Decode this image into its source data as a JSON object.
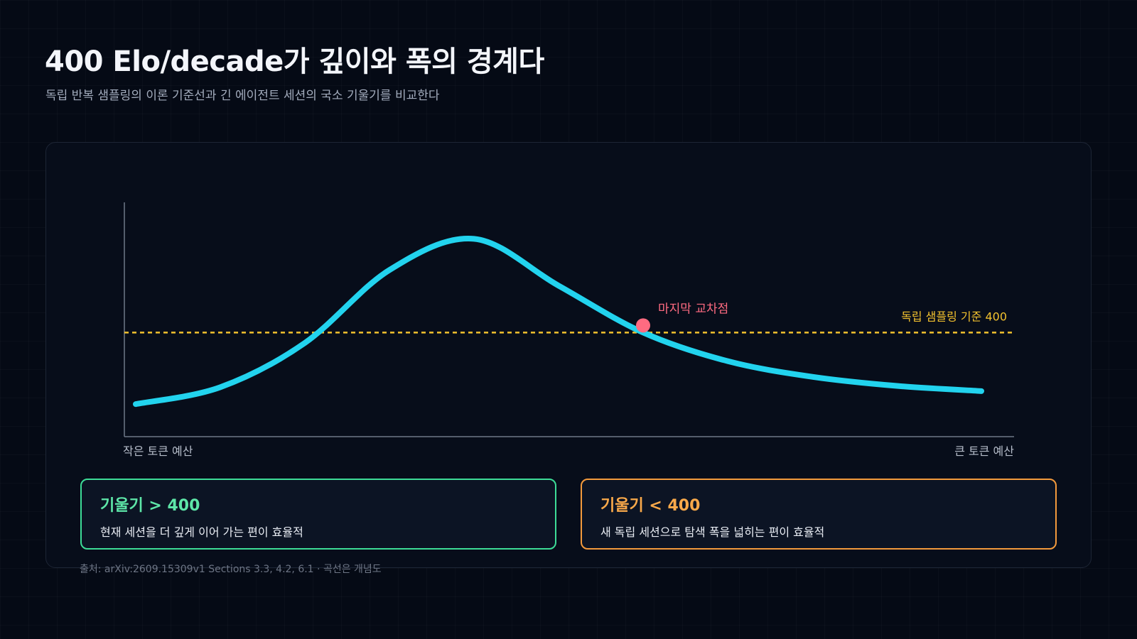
{
  "header": {
    "title": "400 Elo/decade가 깊이와 폭의 경계다",
    "subtitle": "독립 반복 샘플링의 이론 기준선과 긴 에이전트 세션의 국소 기울기를 비교한다"
  },
  "chart_data": {
    "type": "line",
    "xlabel_left": "작은 토큰 예산",
    "xlabel_right": "큰 토큰 예산",
    "baseline": {
      "value": 400,
      "label": "독립 샘플링 기준 400",
      "color": "#f2c12e"
    },
    "crossing": {
      "label": "마지막 교차점",
      "color": "#ff6b81"
    },
    "series": [
      {
        "color": "#22d3ee",
        "x": [
          0.0,
          0.1,
          0.2,
          0.3,
          0.4,
          0.5,
          0.6,
          0.7,
          0.8,
          0.9,
          1.0
        ],
        "values": [
          125,
          190,
          360,
          640,
          760,
          580,
          400,
          290,
          230,
          195,
          175
        ]
      }
    ],
    "crossing_x": 0.6,
    "grid": false
  },
  "cards": [
    {
      "title": "기울기 > 400",
      "desc": "현재 세션을 더 깊게 이어 가는 편이 효율적",
      "color": "#3ddc97"
    },
    {
      "title": "기울기 < 400",
      "desc": "새 독립 세션으로 탐색 폭을 넓히는 편이 효율적",
      "color": "#f39a3c"
    }
  ],
  "footer": {
    "source": "출처: arXiv:2609.15309v1 Sections 3.3, 4.2, 6.1 · 곡선은 개념도"
  }
}
